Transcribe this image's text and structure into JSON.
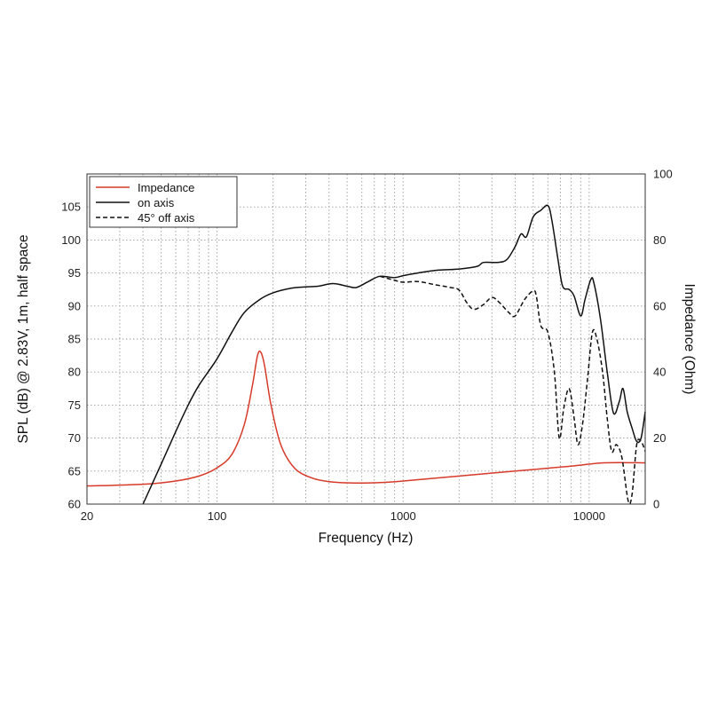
{
  "chart_data": {
    "type": "line",
    "xlabel": "Frequency (Hz)",
    "ylabel": "SPL (dB) @ 2.83V, 1m, half space",
    "y2label": "Impedance (Ohm)",
    "xscale": "log",
    "xlim": [
      20,
      20000
    ],
    "ylim": [
      60,
      110
    ],
    "y2lim": [
      0,
      100
    ],
    "xticks": [
      20,
      100,
      1000,
      10000
    ],
    "xtick_labels": [
      "20",
      "100",
      "1000",
      "10000"
    ],
    "yticks": [
      60,
      65,
      70,
      75,
      80,
      85,
      90,
      95,
      100,
      105
    ],
    "ytick_labels": [
      "60",
      "65",
      "70",
      "75",
      "80",
      "85",
      "90",
      "95",
      "100",
      "105"
    ],
    "y2ticks": [
      0,
      20,
      40,
      60,
      80,
      100
    ],
    "y2tick_labels": [
      "0",
      "20",
      "40",
      "60",
      "80",
      "100"
    ],
    "grid": true,
    "legend_position": "top-left",
    "series": [
      {
        "name": "Impedance",
        "axis": "right",
        "color": "#d83a2a",
        "dash": "solid",
        "points": [
          [
            20,
            5.5
          ],
          [
            40,
            6.0
          ],
          [
            60,
            7.0
          ],
          [
            80,
            8.5
          ],
          [
            100,
            11.0
          ],
          [
            120,
            15.0
          ],
          [
            140,
            24.0
          ],
          [
            155,
            36.0
          ],
          [
            165,
            45.0
          ],
          [
            172,
            46.0
          ],
          [
            180,
            42.0
          ],
          [
            195,
            30.0
          ],
          [
            220,
            18.0
          ],
          [
            260,
            11.0
          ],
          [
            320,
            8.0
          ],
          [
            400,
            6.8
          ],
          [
            550,
            6.4
          ],
          [
            800,
            6.6
          ],
          [
            1000,
            7.0
          ],
          [
            2000,
            8.5
          ],
          [
            4000,
            10.0
          ],
          [
            8000,
            11.5
          ],
          [
            12000,
            12.5
          ],
          [
            20000,
            12.5
          ]
        ]
      },
      {
        "name": "on axis",
        "axis": "left",
        "color": "#111111",
        "dash": "solid",
        "points": [
          [
            40,
            60.0
          ],
          [
            50,
            66.0
          ],
          [
            60,
            71.0
          ],
          [
            70,
            75.0
          ],
          [
            80,
            78.0
          ],
          [
            100,
            82.0
          ],
          [
            120,
            86.0
          ],
          [
            140,
            89.0
          ],
          [
            170,
            91.0
          ],
          [
            200,
            92.0
          ],
          [
            250,
            92.7
          ],
          [
            300,
            92.9
          ],
          [
            350,
            93.0
          ],
          [
            420,
            93.4
          ],
          [
            500,
            93.0
          ],
          [
            560,
            92.8
          ],
          [
            650,
            93.7
          ],
          [
            750,
            94.5
          ],
          [
            900,
            94.3
          ],
          [
            1000,
            94.6
          ],
          [
            1200,
            95.0
          ],
          [
            1500,
            95.4
          ],
          [
            2000,
            95.6
          ],
          [
            2500,
            96.0
          ],
          [
            2700,
            96.6
          ],
          [
            3200,
            96.6
          ],
          [
            3600,
            97.0
          ],
          [
            4000,
            99.0
          ],
          [
            4300,
            100.9
          ],
          [
            4600,
            100.5
          ],
          [
            5000,
            103.5
          ],
          [
            5500,
            104.5
          ],
          [
            6000,
            105.2
          ],
          [
            6300,
            103.0
          ],
          [
            6800,
            97.0
          ],
          [
            7200,
            93.0
          ],
          [
            7800,
            92.5
          ],
          [
            8300,
            91.5
          ],
          [
            9000,
            88.5
          ],
          [
            9500,
            91.0
          ],
          [
            10200,
            94.0
          ],
          [
            10600,
            93.5
          ],
          [
            11500,
            88.0
          ],
          [
            12500,
            80.0
          ],
          [
            13500,
            73.8
          ],
          [
            14500,
            75.5
          ],
          [
            15200,
            77.5
          ],
          [
            16000,
            74.0
          ],
          [
            17000,
            71.5
          ],
          [
            18000,
            69.5
          ],
          [
            19000,
            70.0
          ],
          [
            20000,
            74.0
          ]
        ]
      },
      {
        "name": "45° off axis",
        "axis": "left",
        "color": "#111111",
        "dash": "dashed",
        "points": [
          [
            750,
            94.5
          ],
          [
            900,
            93.9
          ],
          [
            1000,
            93.6
          ],
          [
            1200,
            93.7
          ],
          [
            1500,
            93.2
          ],
          [
            1800,
            92.8
          ],
          [
            2000,
            92.4
          ],
          [
            2200,
            90.5
          ],
          [
            2400,
            89.5
          ],
          [
            2700,
            90.2
          ],
          [
            3000,
            91.3
          ],
          [
            3300,
            90.5
          ],
          [
            3700,
            89.0
          ],
          [
            4000,
            88.5
          ],
          [
            4500,
            91.0
          ],
          [
            5000,
            92.3
          ],
          [
            5200,
            91.5
          ],
          [
            5500,
            87.0
          ],
          [
            6000,
            86.0
          ],
          [
            6500,
            80.0
          ],
          [
            6900,
            70.0
          ],
          [
            7300,
            74.5
          ],
          [
            7800,
            77.5
          ],
          [
            8300,
            73.0
          ],
          [
            8700,
            69.0
          ],
          [
            9200,
            72.0
          ],
          [
            9800,
            79.0
          ],
          [
            10400,
            86.0
          ],
          [
            11000,
            85.0
          ],
          [
            11800,
            80.0
          ],
          [
            12500,
            73.0
          ],
          [
            13200,
            68.0
          ],
          [
            14000,
            69.0
          ],
          [
            15000,
            67.0
          ],
          [
            16200,
            60.5
          ],
          [
            17000,
            61.5
          ],
          [
            18000,
            69.0
          ],
          [
            19000,
            69.5
          ],
          [
            20000,
            68.0
          ]
        ]
      }
    ]
  }
}
